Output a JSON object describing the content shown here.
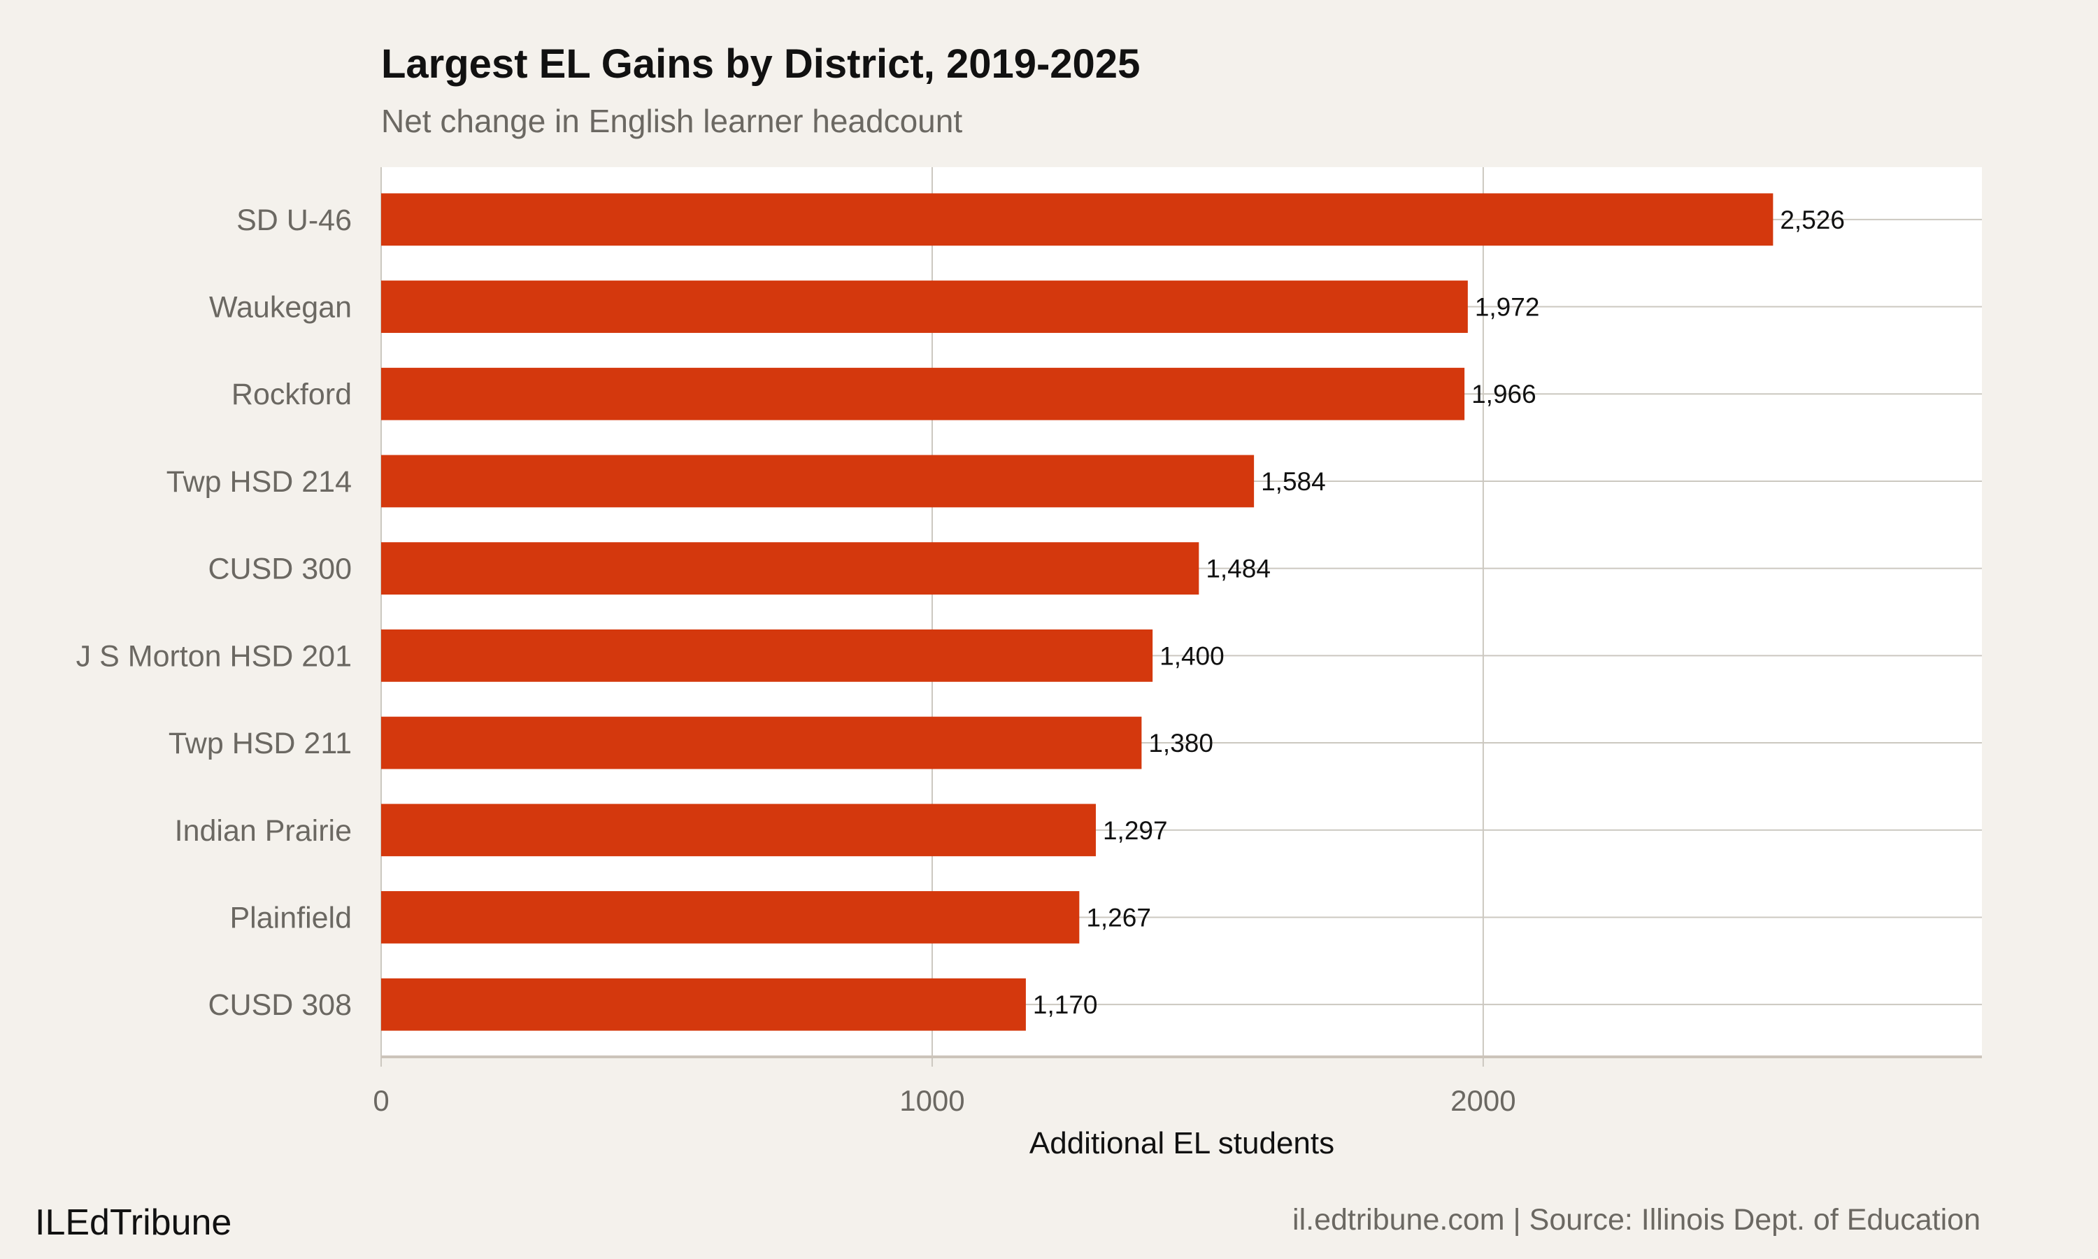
{
  "chart_data": {
    "type": "bar",
    "orientation": "horizontal",
    "title": "Largest EL Gains by District, 2019-2025",
    "subtitle": "Net change in English learner headcount",
    "xlabel": "Additional EL students",
    "ylabel": "",
    "categories": [
      "SD U-46",
      "Waukegan",
      "Rockford",
      "Twp HSD 214",
      "CUSD 300",
      "J S Morton HSD 201",
      "Twp HSD 211",
      "Indian Prairie",
      "Plainfield",
      "CUSD 308"
    ],
    "values": [
      2526,
      1972,
      1966,
      1584,
      1484,
      1400,
      1380,
      1297,
      1267,
      1170
    ],
    "data_labels": [
      "2,526",
      "1,972",
      "1,966",
      "1,584",
      "1,484",
      "1,400",
      "1,380",
      "1,297",
      "1,267",
      "1,170"
    ],
    "xlim": [
      0,
      2905
    ],
    "xticks": [
      0,
      1000,
      2000
    ],
    "xtick_labels": [
      "0",
      "1000",
      "2000"
    ],
    "grid": true,
    "legend": "none",
    "colors": {
      "bar": "#d4380d",
      "background": "#f4f1ec",
      "panel": "#ffffff",
      "grid": "#ccc8c0"
    }
  },
  "footer": {
    "brand": "ILEdTribune",
    "source": "il.edtribune.com | Source: Illinois Dept. of Education"
  }
}
